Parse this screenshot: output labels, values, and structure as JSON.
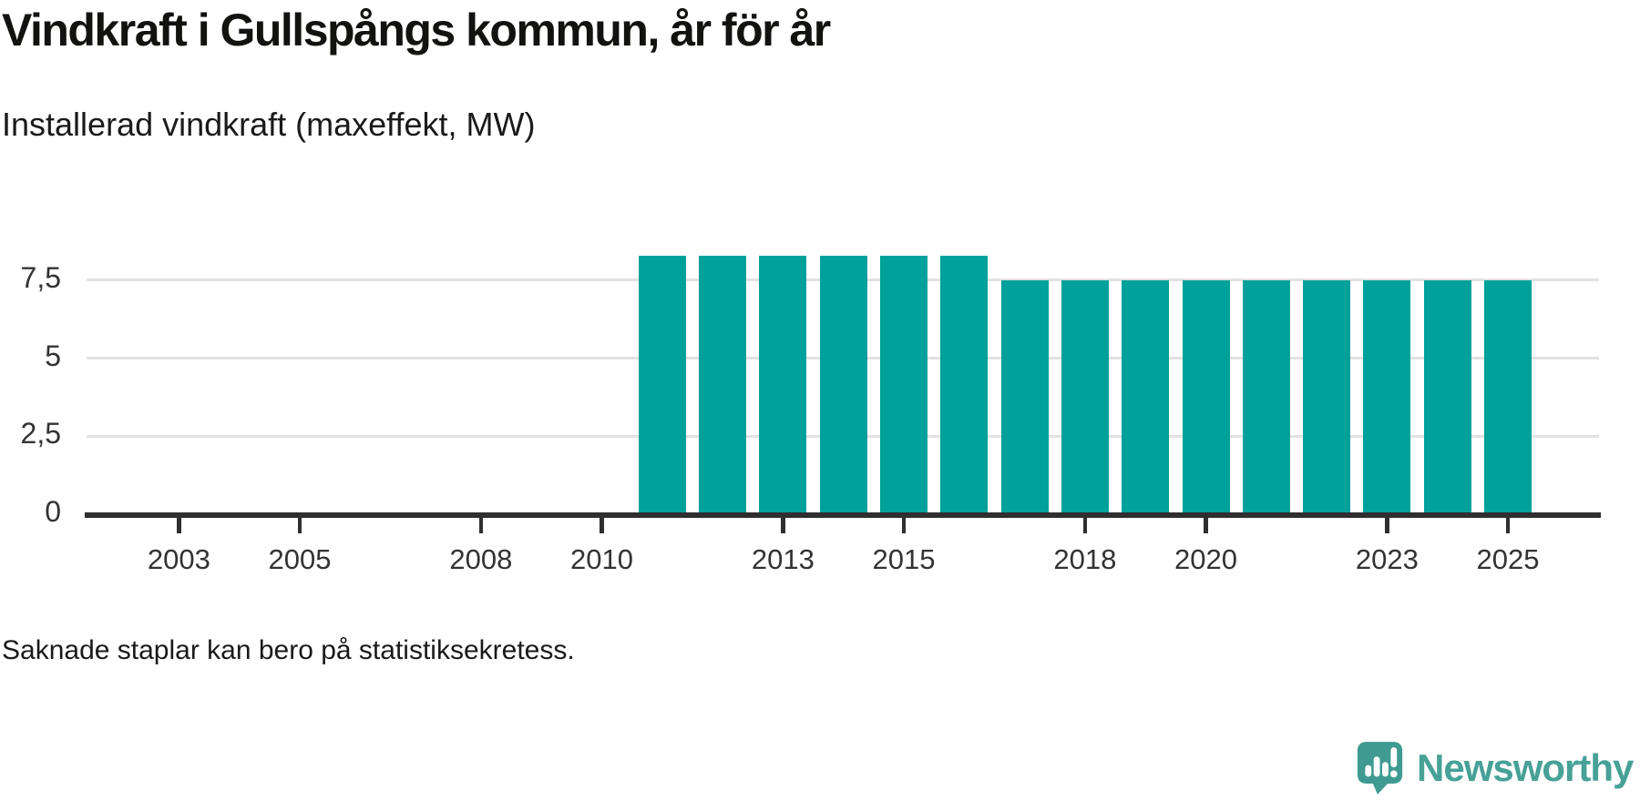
{
  "title": "Vindkraft i Gullspångs kommun, år för år",
  "subtitle": "Installerad vindkraft (maxeffekt, MW)",
  "footnote": "Saknade staplar kan bero på statistiksekretess.",
  "branding": {
    "name": "Newsworthy",
    "icon": "newsworthy-speech-bubble-bar-chart-icon",
    "text_color": "#47a197",
    "icon_color": "#3f9b91"
  },
  "colors": {
    "bar": "#00a19a",
    "axis": "#2f2f2f",
    "gridline": "#e2e2e2",
    "tick_label": "#333333",
    "background": "#ffffff"
  },
  "chart_data": {
    "type": "bar",
    "title": "Vindkraft i Gullspångs kommun, år för år",
    "subtitle": "Installerad vindkraft (maxeffekt, MW)",
    "unit": "MW",
    "x": [
      2011,
      2012,
      2013,
      2014,
      2015,
      2016,
      2017,
      2018,
      2019,
      2020,
      2021,
      2022,
      2023,
      2024,
      2025
    ],
    "values": [
      8.3,
      8.3,
      8.3,
      8.3,
      8.3,
      8.3,
      7.5,
      7.5,
      7.5,
      7.5,
      7.5,
      7.5,
      7.5,
      7.5,
      7.5
    ],
    "missing_years_without_bars": [
      2001,
      2002,
      2003,
      2004,
      2005,
      2006,
      2007,
      2008,
      2009,
      2010
    ],
    "x_tick_years": [
      2003,
      2005,
      2008,
      2010,
      2013,
      2015,
      2018,
      2020,
      2023,
      2025
    ],
    "y_axis": {
      "ticks": [
        {
          "label": "0",
          "value": 0
        },
        {
          "label": "2,5",
          "value": 2.5
        },
        {
          "label": "5",
          "value": 5
        },
        {
          "label": "7,5",
          "value": 7.5
        }
      ]
    },
    "xlim": [
      2001.4,
      2026.6
    ],
    "ylim": [
      0,
      9.7
    ],
    "grid": "horizontal",
    "legend": "none",
    "decimal_separator": ","
  }
}
